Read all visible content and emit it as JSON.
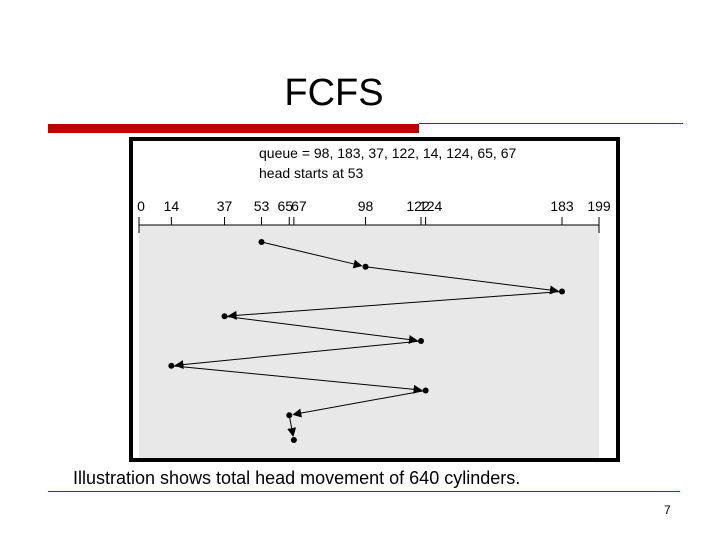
{
  "slide": {
    "title": "FCFS",
    "caption": "Illustration shows total head movement of 640 cylinders.",
    "page_number": "7"
  },
  "figure": {
    "queue_text": "queue = 98, 183, 37, 122, 14, 124, 65, 67",
    "head_text": "head starts at 53"
  },
  "chart_data": {
    "type": "line",
    "axis_ticks": [
      0,
      14,
      37,
      53,
      65,
      67,
      98,
      122,
      124,
      183,
      199
    ],
    "axis_range": [
      0,
      199
    ],
    "queue": [
      98,
      183,
      37,
      122,
      14,
      124,
      65,
      67
    ],
    "head_start": 53,
    "sequence": [
      53,
      98,
      183,
      37,
      122,
      14,
      124,
      65,
      67
    ]
  },
  "colors": {
    "accent": "#c00000",
    "plot_background": "#e8e8e8",
    "frame": "#000000"
  }
}
